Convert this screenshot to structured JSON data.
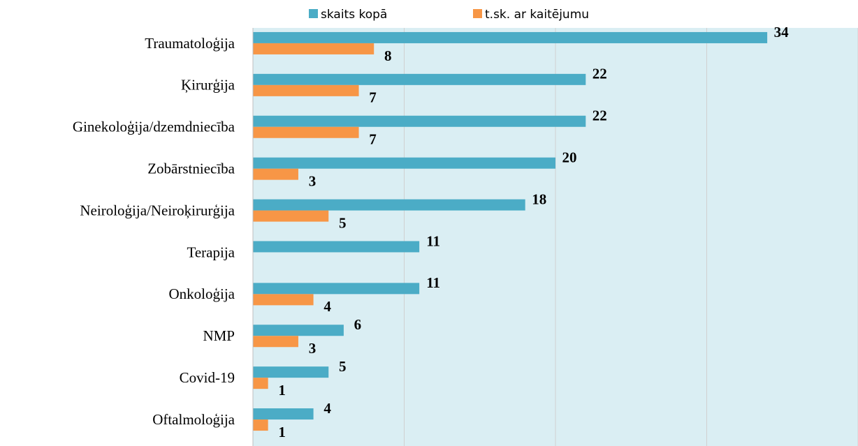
{
  "chart_data": {
    "type": "hbar",
    "categories": [
      "Traumatoloģija",
      "Ķirurģija",
      "Ginekoloģija/dzemdniecība",
      "Zobārstniecība",
      "Neiroloģija/Neiroķirurģija",
      "Terapija",
      "Onkoloģija",
      "NMP",
      "Covid-19",
      "Oftalmoloģija"
    ],
    "series": [
      {
        "name": "skaits kopā",
        "color": "#4bacc6",
        "values": [
          34,
          22,
          22,
          20,
          18,
          11,
          11,
          6,
          5,
          4
        ]
      },
      {
        "name": "t.sk. ar kaitējumu",
        "color": "#f79646",
        "values": [
          8,
          7,
          7,
          3,
          5,
          null,
          4,
          3,
          1,
          1
        ]
      }
    ],
    "xlim": [
      0,
      40
    ],
    "xticks": [
      0,
      10,
      20,
      30,
      40
    ],
    "grid": true,
    "plot_background": "#daeef3"
  }
}
